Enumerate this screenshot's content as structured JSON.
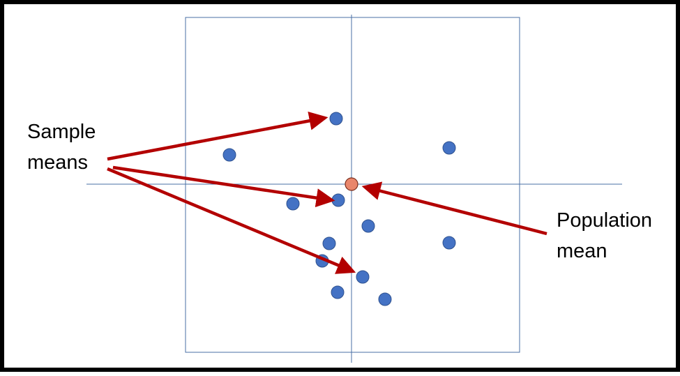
{
  "labels": {
    "sample_means": "Sample\nmeans",
    "population_mean": "Population\nmean"
  },
  "colors": {
    "sample_point": "#4472C4",
    "population_point": "#E9866B",
    "arrow": "#B30000",
    "axes": "#4A6FA5",
    "frame": "#000000"
  }
}
